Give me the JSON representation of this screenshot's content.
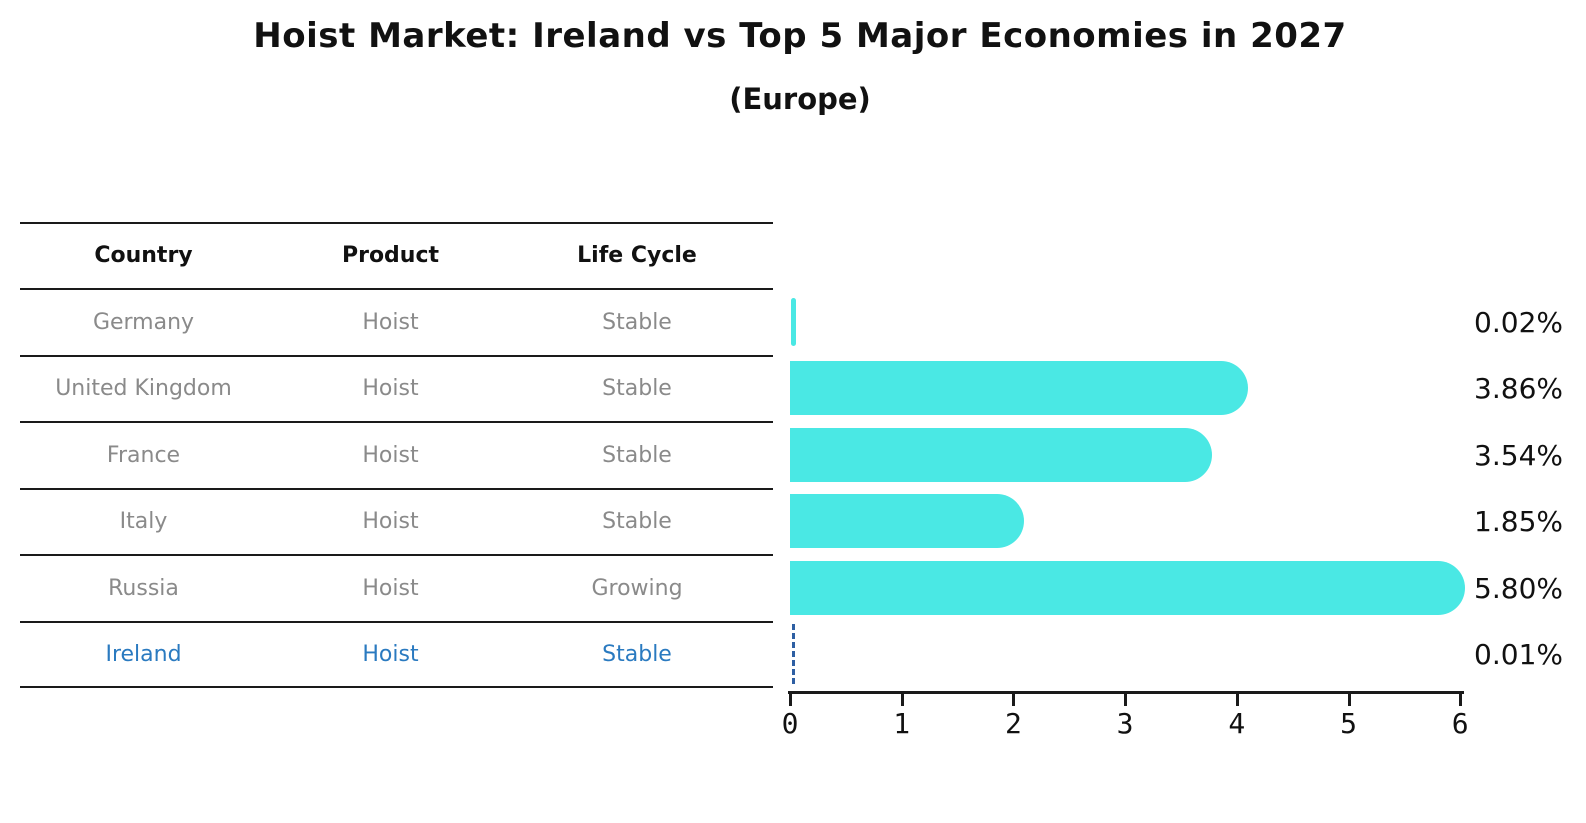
{
  "title": "Hoist Market: Ireland vs Top 5 Major Economies in 2027",
  "subtitle": "(Europe)",
  "table": {
    "headers": {
      "country": "Country",
      "product": "Product",
      "life_cycle": "Life Cycle"
    },
    "rows": [
      {
        "country": "Germany",
        "product": "Hoist",
        "life_cycle": "Stable"
      },
      {
        "country": "United Kingdom",
        "product": "Hoist",
        "life_cycle": "Stable"
      },
      {
        "country": "France",
        "product": "Hoist",
        "life_cycle": "Stable"
      },
      {
        "country": "Italy",
        "product": "Hoist",
        "life_cycle": "Stable"
      },
      {
        "country": "Russia",
        "product": "Hoist",
        "life_cycle": "Growing"
      },
      {
        "country": "Ireland",
        "product": "Hoist",
        "life_cycle": "Stable"
      }
    ]
  },
  "chart_data": {
    "type": "bar",
    "orientation": "horizontal",
    "title": "Hoist Market: Ireland vs Top 5 Major Economies in 2027",
    "subtitle": "(Europe)",
    "categories": [
      "Germany",
      "United Kingdom",
      "France",
      "Italy",
      "Russia",
      "Ireland"
    ],
    "values": [
      0.02,
      3.86,
      3.54,
      1.85,
      5.8,
      0.01
    ],
    "value_labels": [
      "0.02%",
      "3.86%",
      "3.54%",
      "1.85%",
      "5.80%",
      "0.01%"
    ],
    "xlabel": "",
    "ylabel": "",
    "xlim": [
      0,
      6
    ],
    "x_ticks": [
      "0",
      "1",
      "2",
      "3",
      "4",
      "5",
      "6"
    ],
    "grid": false,
    "legend": false,
    "highlight_index": 5,
    "bar_color": "#4ae8e4",
    "highlight_line_color": "#2e5fa3",
    "highlight_text_color": "#2a7ac0",
    "axis_color": "#1a1a1a",
    "row_text_color": "#8a8a8a"
  }
}
